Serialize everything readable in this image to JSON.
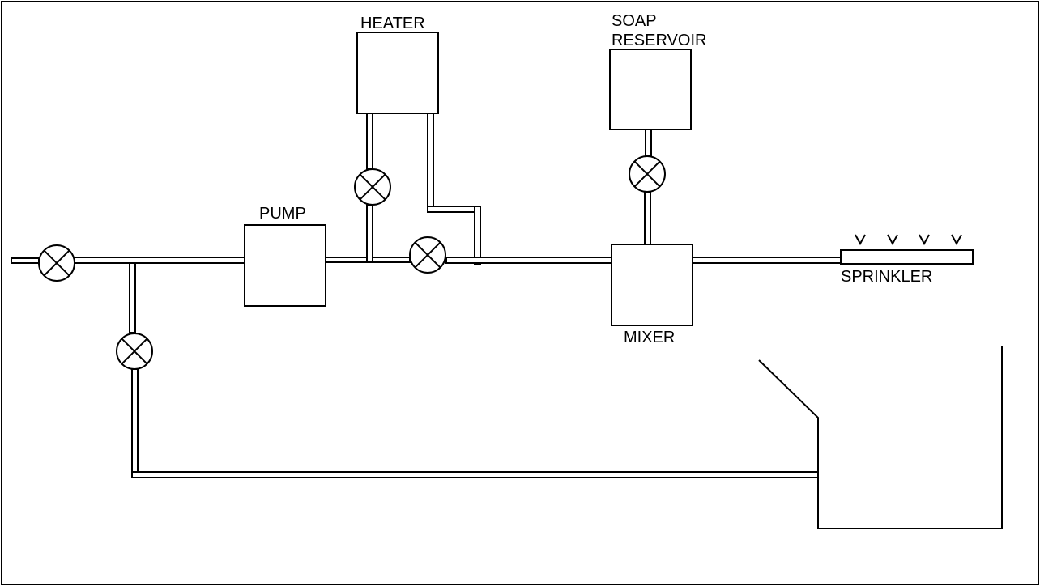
{
  "labels": {
    "heater": "HEATER",
    "soap_line1": "SOAP",
    "soap_line2": "RESERVOIR",
    "pump": "PUMP",
    "mixer": "MIXER",
    "sprinkler": "SPRINKLER"
  },
  "components": [
    {
      "id": "heater",
      "type": "box"
    },
    {
      "id": "soap-reservoir",
      "type": "box"
    },
    {
      "id": "pump",
      "type": "box"
    },
    {
      "id": "mixer",
      "type": "box"
    },
    {
      "id": "sprinkler",
      "type": "spray-bar"
    },
    {
      "id": "collection-tank",
      "type": "open-tank"
    }
  ],
  "valves": [
    "inlet-valve",
    "bypass-valve",
    "heater-valve",
    "pump-outlet-valve",
    "soap-valve"
  ],
  "colors": {
    "stroke": "#000000",
    "background": "#ffffff"
  }
}
